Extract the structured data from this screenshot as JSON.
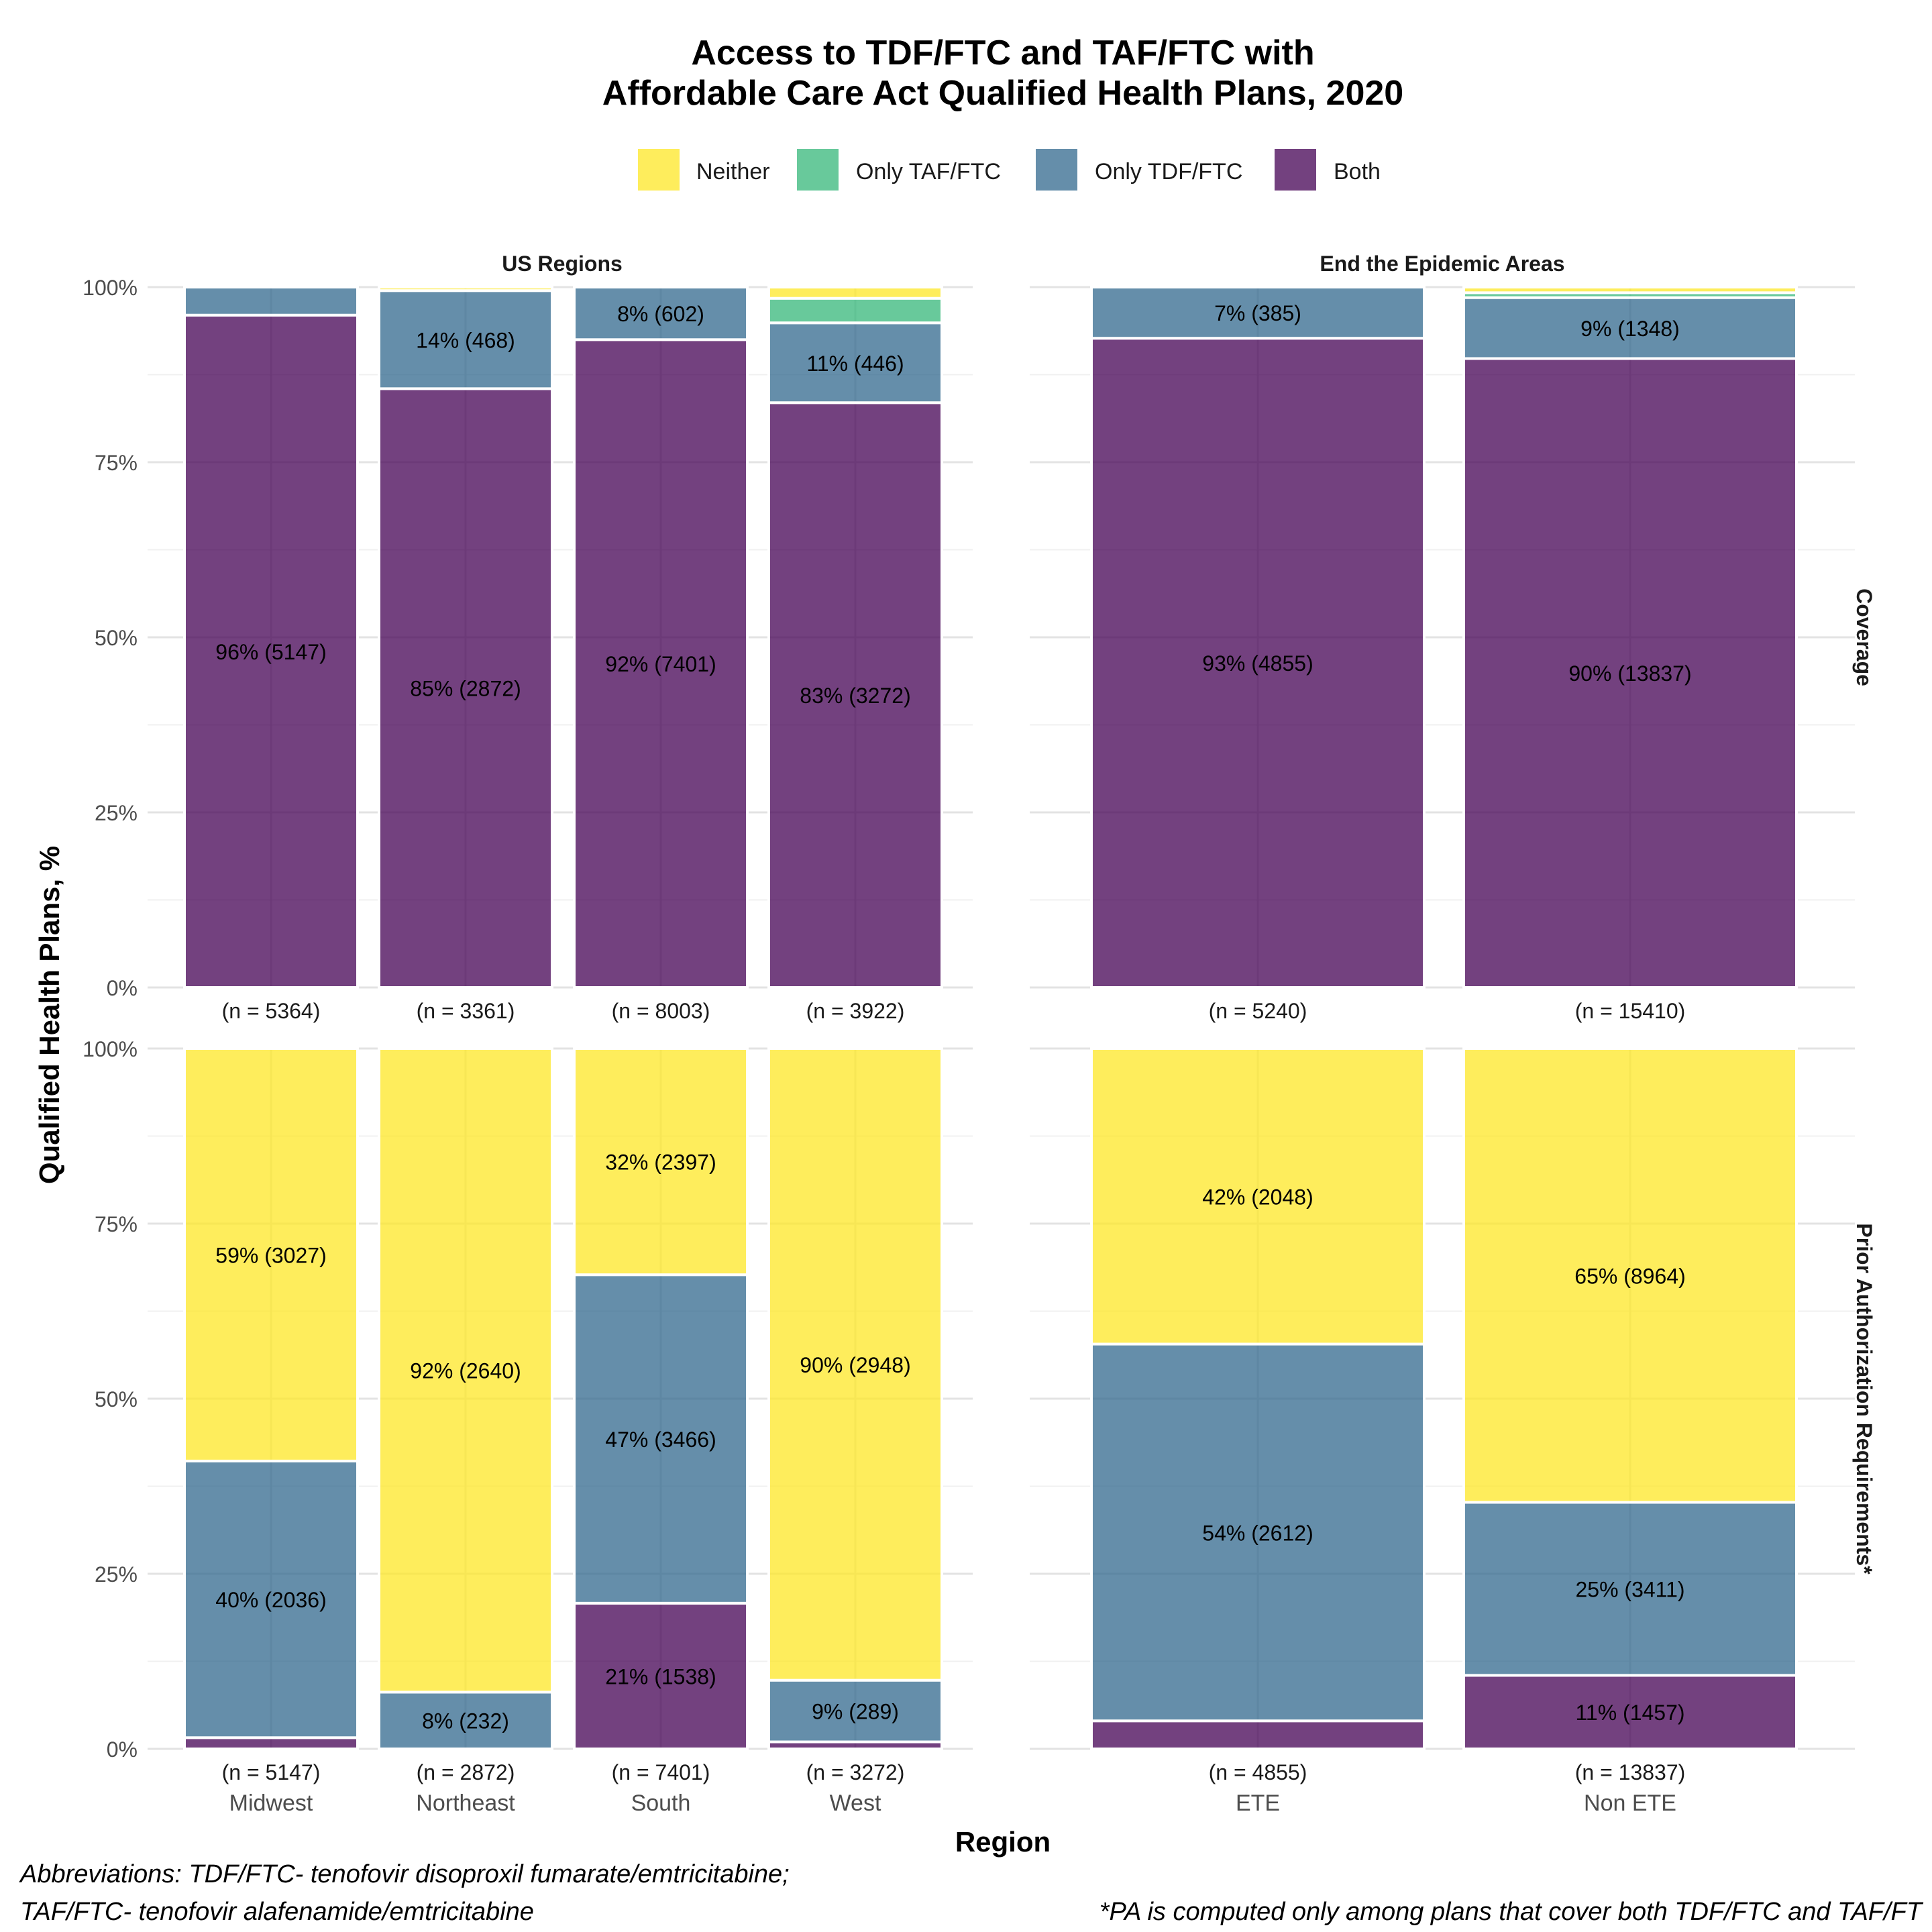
{
  "title": {
    "line1": "Access to TDF/FTC and TAF/FTC with",
    "line2": "Affordable Care Act Qualified Health Plans, 2020"
  },
  "legend": {
    "position": "top",
    "items": [
      {
        "label": "Neither",
        "color": "#FDE725"
      },
      {
        "label": "Only TAF/FTC",
        "color": "#35B779"
      },
      {
        "label": "Only TDF/FTC",
        "color": "#31688E"
      },
      {
        "label": "Both",
        "color": "#440154"
      }
    ]
  },
  "facet_columns": [
    "US Regions",
    "End the Epidemic Areas"
  ],
  "facet_rows": [
    "Coverage",
    "Prior Authorization Requirements*"
  ],
  "y_axis_label": "Qualified Health Plans, %",
  "x_axis_label": "Region",
  "y_ticks": [
    "0%",
    "25%",
    "50%",
    "75%",
    "100%"
  ],
  "footnotes": {
    "abbrev_line1": "Abbreviations: TDF/FTC- tenofovir disoproxil fumarate/emtricitabine;",
    "abbrev_line2": "TAF/FTC- tenofovir alafenamide/emtricitabine",
    "pa_note": "*PA is computed only among plans that cover both TDF/FTC and TAF/FT"
  },
  "chart_data": [
    {
      "type": "bar",
      "stacked": true,
      "panel": "Coverage / US Regions",
      "ylim": [
        0,
        100
      ],
      "grid": true,
      "categories": [
        "Midwest",
        "Northeast",
        "South",
        "West"
      ],
      "n_labels": [
        "(n = 5364)",
        "(n = 3361)",
        "(n = 8003)",
        "(n = 3922)"
      ],
      "series": [
        {
          "name": "Both",
          "values": [
            96,
            85.5,
            92.5,
            83.5
          ],
          "labels": [
            "96% (5147)",
            "85% (2872)",
            "92% (7401)",
            "83% (3272)"
          ]
        },
        {
          "name": "Only TDF/FTC",
          "values": [
            4,
            14,
            7.5,
            11.4
          ],
          "labels": [
            "",
            "14% (468)",
            "8% (602)",
            "11% (446)"
          ]
        },
        {
          "name": "Only TAF/FTC",
          "values": [
            0,
            0,
            0,
            3.5
          ],
          "labels": [
            "",
            "",
            "",
            ""
          ]
        },
        {
          "name": "Neither",
          "values": [
            0,
            0.5,
            0,
            1.6
          ],
          "labels": [
            "",
            "",
            "",
            ""
          ]
        }
      ]
    },
    {
      "type": "bar",
      "stacked": true,
      "panel": "Coverage / End the Epidemic Areas",
      "ylim": [
        0,
        100
      ],
      "grid": true,
      "categories": [
        "ETE",
        "Non ETE"
      ],
      "n_labels": [
        "(n = 5240)",
        "(n = 15410)"
      ],
      "series": [
        {
          "name": "Both",
          "values": [
            92.7,
            89.8
          ],
          "labels": [
            "93% (4855)",
            "90% (13837)"
          ]
        },
        {
          "name": "Only TDF/FTC",
          "values": [
            7.3,
            8.7
          ],
          "labels": [
            "7% (385)",
            "9% (1348)"
          ]
        },
        {
          "name": "Only TAF/FTC",
          "values": [
            0,
            0.7
          ],
          "labels": [
            "",
            ""
          ]
        },
        {
          "name": "Neither",
          "values": [
            0,
            0.8
          ],
          "labels": [
            "",
            ""
          ]
        }
      ]
    },
    {
      "type": "bar",
      "stacked": true,
      "panel": "Prior Authorization Requirements* / US Regions",
      "ylim": [
        0,
        100
      ],
      "grid": true,
      "categories": [
        "Midwest",
        "Northeast",
        "South",
        "West"
      ],
      "n_labels": [
        "(n = 5147)",
        "(n = 2872)",
        "(n = 7401)",
        "(n = 3272)"
      ],
      "series": [
        {
          "name": "Both",
          "values": [
            1.6,
            0,
            20.8,
            1
          ],
          "labels": [
            "",
            "",
            "21% (1538)",
            ""
          ]
        },
        {
          "name": "Only TDF/FTC",
          "values": [
            39.5,
            8.1,
            46.9,
            8.8
          ],
          "labels": [
            "40% (2036)",
            "8% (232)",
            "47% (3466)",
            "9% (289)"
          ]
        },
        {
          "name": "Only TAF/FTC",
          "values": [
            0,
            0,
            0,
            0
          ],
          "labels": [
            "",
            "",
            "",
            ""
          ]
        },
        {
          "name": "Neither",
          "values": [
            58.9,
            91.9,
            32.3,
            90.2
          ],
          "labels": [
            "59% (3027)",
            "92% (2640)",
            "32% (2397)",
            "90% (2948)"
          ]
        }
      ]
    },
    {
      "type": "bar",
      "stacked": true,
      "panel": "Prior Authorization Requirements* / End the Epidemic Areas",
      "ylim": [
        0,
        100
      ],
      "grid": true,
      "categories": [
        "ETE",
        "Non ETE"
      ],
      "n_labels": [
        "(n = 4855)",
        "(n = 13837)"
      ],
      "series": [
        {
          "name": "Both",
          "values": [
            4,
            10.5
          ],
          "labels": [
            "",
            "11% (1457)"
          ]
        },
        {
          "name": "Only TDF/FTC",
          "values": [
            53.8,
            24.7
          ],
          "labels": [
            "54% (2612)",
            "25% (3411)"
          ]
        },
        {
          "name": "Only TAF/FTC",
          "values": [
            0,
            0
          ],
          "labels": [
            "",
            ""
          ]
        },
        {
          "name": "Neither",
          "values": [
            42.2,
            64.8
          ],
          "labels": [
            "42% (2048)",
            "65% (8964)"
          ]
        }
      ]
    }
  ]
}
